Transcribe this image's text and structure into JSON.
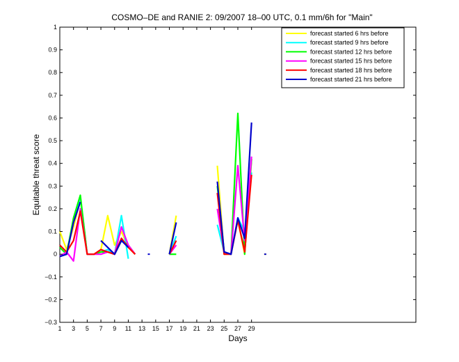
{
  "chart_data": {
    "type": "line",
    "title": "COSMO–DE and RANIE 2: 09/2007 18–00 UTC, 0.1 mm/6h for \"Main\"",
    "xlabel": "Days",
    "ylabel": "Equitable threat score",
    "xlim": [
      1,
      53
    ],
    "ylim": [
      -0.3,
      1
    ],
    "x_ticks": [
      1,
      3,
      5,
      7,
      9,
      11,
      13,
      15,
      17,
      19,
      21,
      23,
      25,
      27,
      29
    ],
    "y_ticks": [
      -0.3,
      -0.2,
      -0.1,
      0,
      0.1,
      0.2,
      0.3,
      0.4,
      0.5,
      0.6,
      0.7,
      0.8,
      0.9,
      1
    ],
    "y_tick_labels": [
      "−0.3",
      "−0.2",
      "−0.1",
      "0",
      "0.1",
      "0.2",
      "0.3",
      "0.4",
      "0.5",
      "0.6",
      "0.7",
      "0.8",
      "0.9",
      "1"
    ],
    "legend_position": "top-right",
    "grid": false,
    "series": [
      {
        "name": "forecast started 6 hrs before",
        "color": "#ffff00",
        "points": [
          [
            1,
            0.1
          ],
          [
            2,
            0.02
          ],
          [
            3,
            0.12
          ],
          [
            4,
            0.24
          ],
          [
            5,
            0.0
          ],
          [
            6,
            0.0
          ],
          [
            7,
            0.02
          ],
          [
            8,
            0.17
          ],
          [
            9,
            0.04
          ],
          [
            10,
            0.1
          ],
          [
            11,
            0.03
          ],
          [
            12,
            0.0
          ],
          null,
          [
            17,
            0.0
          ],
          [
            18,
            0.17
          ],
          null,
          [
            24,
            0.39
          ],
          [
            25,
            0.0
          ],
          [
            26,
            0.0
          ],
          [
            27,
            0.15
          ],
          [
            28,
            0.0
          ],
          [
            29,
            0.42
          ],
          null,
          [
            31,
            0.0
          ]
        ]
      },
      {
        "name": "forecast started 9 hrs before",
        "color": "#00ffff",
        "points": [
          [
            1,
            -0.01
          ],
          [
            2,
            0.0
          ],
          [
            3,
            0.15
          ],
          [
            4,
            0.25
          ],
          [
            5,
            0.0
          ],
          [
            6,
            0.0
          ],
          [
            7,
            0.01
          ],
          [
            8,
            0.02
          ],
          [
            9,
            0.0
          ],
          [
            10,
            0.17
          ],
          [
            11,
            -0.02
          ],
          null,
          [
            17,
            0.0
          ],
          [
            18,
            0.08
          ],
          null,
          [
            24,
            0.13
          ],
          [
            25,
            0.01
          ],
          [
            26,
            0.0
          ],
          [
            27,
            0.16
          ],
          [
            28,
            0.1
          ],
          [
            29,
            0.36
          ]
        ]
      },
      {
        "name": "forecast started 12 hrs before",
        "color": "#00ff00",
        "points": [
          [
            1,
            0.03
          ],
          [
            2,
            0.0
          ],
          [
            3,
            0.16
          ],
          [
            4,
            0.26
          ],
          [
            5,
            0.0
          ],
          [
            6,
            0.0
          ],
          [
            7,
            0.01
          ],
          [
            8,
            0.01
          ],
          [
            9,
            0.0
          ],
          [
            10,
            0.06
          ],
          [
            11,
            0.04
          ],
          [
            12,
            0.0
          ],
          null,
          [
            17,
            0.0
          ],
          [
            18,
            0.0
          ],
          null,
          [
            24,
            0.3
          ],
          [
            25,
            0.01
          ],
          [
            26,
            0.0
          ],
          [
            27,
            0.62
          ],
          [
            28,
            0.0
          ],
          [
            29,
            0.42
          ]
        ]
      },
      {
        "name": "forecast started 15 hrs before",
        "color": "#ff00ff",
        "points": [
          [
            1,
            -0.01
          ],
          [
            2,
            0.01
          ],
          [
            3,
            -0.03
          ],
          [
            4,
            0.2
          ],
          [
            5,
            0.0
          ],
          [
            6,
            0.0
          ],
          [
            7,
            0.0
          ],
          [
            8,
            0.01
          ],
          [
            9,
            0.0
          ],
          [
            10,
            0.12
          ],
          [
            11,
            0.04
          ],
          [
            12,
            0.0
          ],
          null,
          [
            17,
            0.0
          ],
          [
            18,
            0.04
          ],
          null,
          [
            24,
            0.2
          ],
          [
            25,
            0.01
          ],
          [
            26,
            0.0
          ],
          [
            27,
            0.39
          ],
          [
            28,
            0.06
          ],
          [
            29,
            0.43
          ]
        ]
      },
      {
        "name": "forecast started 18 hrs before",
        "color": "#ff0000",
        "points": [
          [
            1,
            0.04
          ],
          [
            2,
            0.01
          ],
          [
            3,
            0.06
          ],
          [
            4,
            0.19
          ],
          [
            5,
            0.0
          ],
          [
            6,
            0.0
          ],
          [
            7,
            0.02
          ],
          [
            8,
            0.01
          ],
          [
            9,
            0.0
          ],
          [
            10,
            0.07
          ],
          [
            11,
            0.03
          ],
          [
            12,
            0.0
          ],
          null,
          [
            17,
            0.0
          ],
          [
            18,
            0.06
          ],
          null,
          [
            24,
            0.27
          ],
          [
            25,
            0.0
          ],
          [
            26,
            0.0
          ],
          [
            27,
            0.15
          ],
          [
            28,
            0.01
          ],
          [
            29,
            0.35
          ]
        ]
      },
      {
        "name": "forecast started 21 hrs before",
        "color": "#0000cc",
        "points": [
          [
            1,
            -0.01
          ],
          [
            2,
            0.0
          ],
          [
            3,
            0.14
          ],
          [
            4,
            0.23
          ],
          null,
          [
            7,
            0.06
          ],
          [
            8,
            0.03
          ],
          [
            9,
            0.0
          ],
          [
            10,
            0.06
          ],
          [
            11,
            0.03
          ],
          null,
          [
            14,
            0.0
          ],
          null,
          [
            17,
            0.0
          ],
          [
            18,
            0.14
          ],
          null,
          [
            24,
            0.32
          ],
          [
            25,
            0.01
          ],
          [
            26,
            0.0
          ],
          [
            27,
            0.16
          ],
          [
            28,
            0.07
          ],
          [
            29,
            0.58
          ],
          null,
          [
            31,
            0.0
          ]
        ]
      }
    ]
  }
}
